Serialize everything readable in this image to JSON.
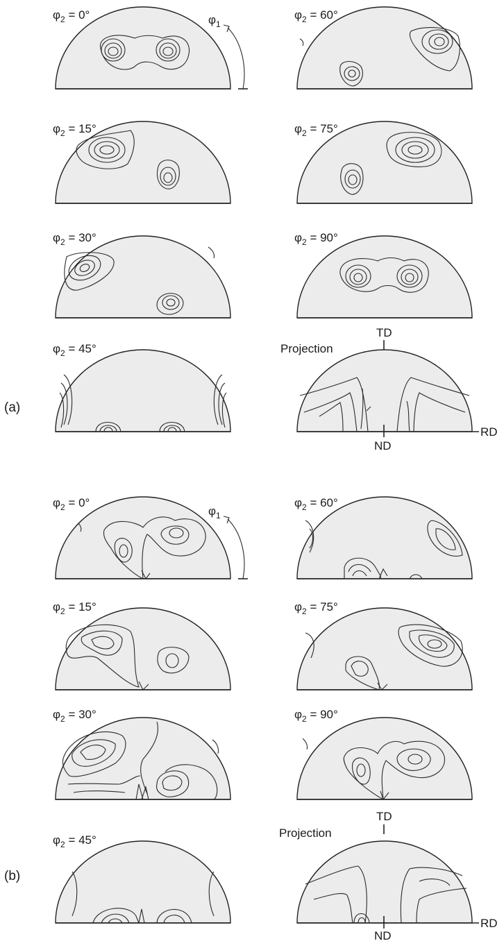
{
  "figure": {
    "sections": [
      {
        "label": "(a)",
        "phi1_label": "φ",
        "phi1_sub": "1",
        "panels": [
          {
            "phi": "φ",
            "sub": "2",
            "eq": " = 0°"
          },
          {
            "phi": "φ",
            "sub": "2",
            "eq": " = 60°"
          },
          {
            "phi": "φ",
            "sub": "2",
            "eq": " = 15°"
          },
          {
            "phi": "φ",
            "sub": "2",
            "eq": " = 75°"
          },
          {
            "phi": "φ",
            "sub": "2",
            "eq": " = 30°"
          },
          {
            "phi": "φ",
            "sub": "2",
            "eq": " = 90°"
          },
          {
            "phi": "φ",
            "sub": "2",
            "eq": " = 45°"
          }
        ],
        "projection": {
          "title": "Projection",
          "td": "TD",
          "nd": "ND",
          "rd": "RD"
        }
      },
      {
        "label": "(b)",
        "phi1_label": "φ",
        "phi1_sub": "1",
        "panels": [
          {
            "phi": "φ",
            "sub": "2",
            "eq": " = 0°"
          },
          {
            "phi": "φ",
            "sub": "2",
            "eq": " = 60°"
          },
          {
            "phi": "φ",
            "sub": "2",
            "eq": " = 15°"
          },
          {
            "phi": "φ",
            "sub": "2",
            "eq": " = 75°"
          },
          {
            "phi": "φ",
            "sub": "2",
            "eq": " = 30°"
          },
          {
            "phi": "φ",
            "sub": "2",
            "eq": " = 90°"
          },
          {
            "phi": "φ",
            "sub": "2",
            "eq": " = 45°"
          }
        ],
        "projection": {
          "title": "Projection",
          "td": "TD",
          "nd": "ND",
          "rd": "RD"
        }
      }
    ]
  }
}
